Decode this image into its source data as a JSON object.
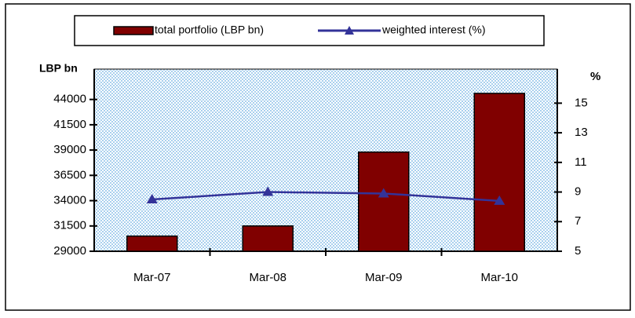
{
  "chart_data": {
    "type": "bar_line",
    "y_label": "LBP bn",
    "y2_label": "%",
    "categories": [
      "Mar-07",
      "Mar-08",
      "Mar-09",
      "Mar-10"
    ],
    "series": [
      {
        "name": "total portfolio (LBP bn)",
        "type": "bar",
        "color": "#800000",
        "values": [
          30500,
          31500,
          38800,
          44600
        ]
      },
      {
        "name": "weighted interest (%)",
        "type": "line",
        "color": "#333399",
        "axis": "y2",
        "values": [
          8.5,
          9.0,
          8.9,
          8.4
        ]
      }
    ],
    "ylim": [
      29000,
      47000
    ],
    "yticks": [
      29000,
      31500,
      34000,
      36500,
      39000,
      41500,
      44000
    ],
    "y2lim": [
      5,
      17.3
    ],
    "y2ticks": [
      5,
      7,
      9,
      11,
      13,
      15
    ],
    "legend": "top"
  }
}
